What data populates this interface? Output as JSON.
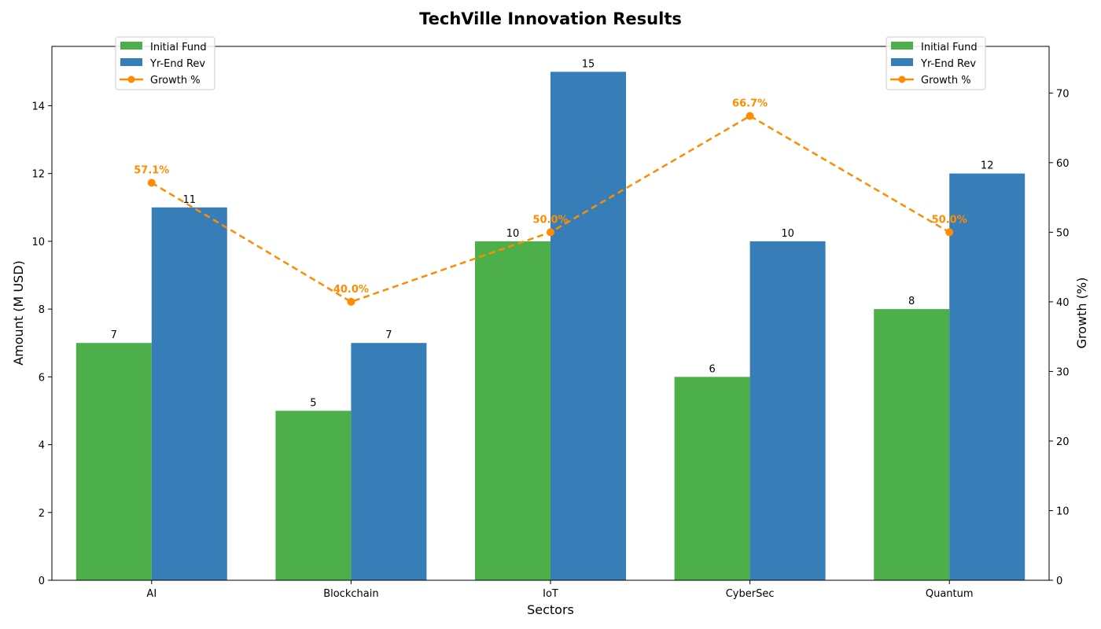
{
  "chart_data": {
    "type": "bar",
    "title": "TechVille Innovation Results",
    "xlabel": "Sectors",
    "ylabel": "Amount (M USD)",
    "y2label": "Growth (%)",
    "categories": [
      "AI",
      "Blockchain",
      "IoT",
      "CyberSec",
      "Quantum"
    ],
    "ylim": [
      0,
      15.75
    ],
    "y2lim": [
      0,
      76.7
    ],
    "yticks": [
      0,
      2,
      4,
      6,
      8,
      10,
      12,
      14
    ],
    "y2ticks": [
      0,
      10,
      20,
      30,
      40,
      50,
      60,
      70
    ],
    "series": [
      {
        "name": "Initial Fund",
        "type": "bar",
        "color": "#4daf4a",
        "values": [
          7,
          5,
          10,
          6,
          8
        ]
      },
      {
        "name": "Yr-End Rev",
        "type": "bar",
        "color": "#377eb8",
        "values": [
          11,
          7,
          15,
          10,
          12
        ]
      },
      {
        "name": "Growth %",
        "type": "line",
        "axis": "right",
        "color": "#ff8c00",
        "line_style": "dashed",
        "marker": "circle",
        "values": [
          57.1,
          40.0,
          50.0,
          66.7,
          50.0
        ],
        "labels": [
          "57.1%",
          "40.0%",
          "50.0%",
          "66.7%",
          "50.0%"
        ]
      }
    ],
    "legend_placement": [
      "top-left",
      "top-right"
    ],
    "grid": false
  }
}
